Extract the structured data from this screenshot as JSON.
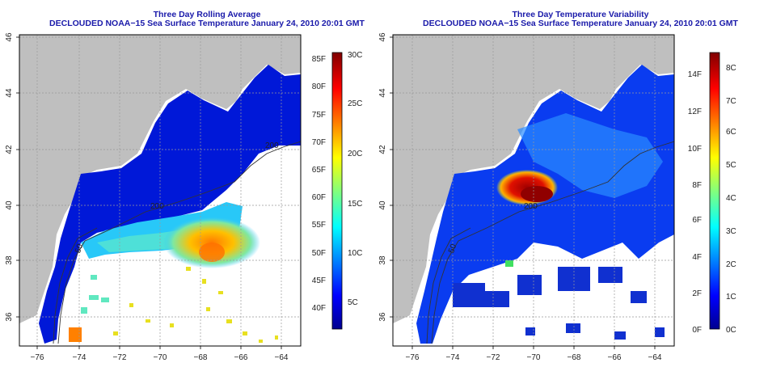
{
  "panels": [
    {
      "title": "Three Day Rolling Average",
      "subtitle": "DECLOUDED NOAA−15 Sea Surface Temperature January 24, 2010 20:01 GMT",
      "colorbar": {
        "type": "diverging-jet",
        "left_labels": [
          "85F",
          "80F",
          "75F",
          "70F",
          "65F",
          "60F",
          "55F",
          "50F",
          "45F",
          "40F"
        ],
        "right_labels": [
          "30C",
          "25C",
          "20C",
          "15C",
          "10C",
          "5C"
        ]
      },
      "map_labels": [
        "200",
        "200",
        "50"
      ]
    },
    {
      "title": "Three Day Temperature Variability",
      "subtitle": "DECLOUDED NOAA−15 Sea Surface Temperature January 24, 2010 20:01 GMT",
      "colorbar": {
        "type": "jet",
        "left_labels": [
          "14F",
          "12F",
          "10F",
          "8F",
          "6F",
          "4F",
          "2F",
          "0F"
        ],
        "right_labels": [
          "8C",
          "7C",
          "6C",
          "5C",
          "4C",
          "3C",
          "2C",
          "1C",
          "0C"
        ]
      },
      "map_labels": [
        "200",
        "50"
      ]
    }
  ],
  "axes": {
    "lat_ticks": [
      "46",
      "44",
      "42",
      "40",
      "38",
      "36"
    ],
    "lon_ticks": [
      "−76",
      "−74",
      "−72",
      "−70",
      "−68",
      "−66",
      "−64"
    ]
  },
  "colors": {
    "title": "#1a1aaa",
    "land": "#bfbfbf",
    "deep_blue": "#0010c8",
    "cyan": "#20d8ff",
    "orange": "#ff8800",
    "red": "#b00000"
  }
}
